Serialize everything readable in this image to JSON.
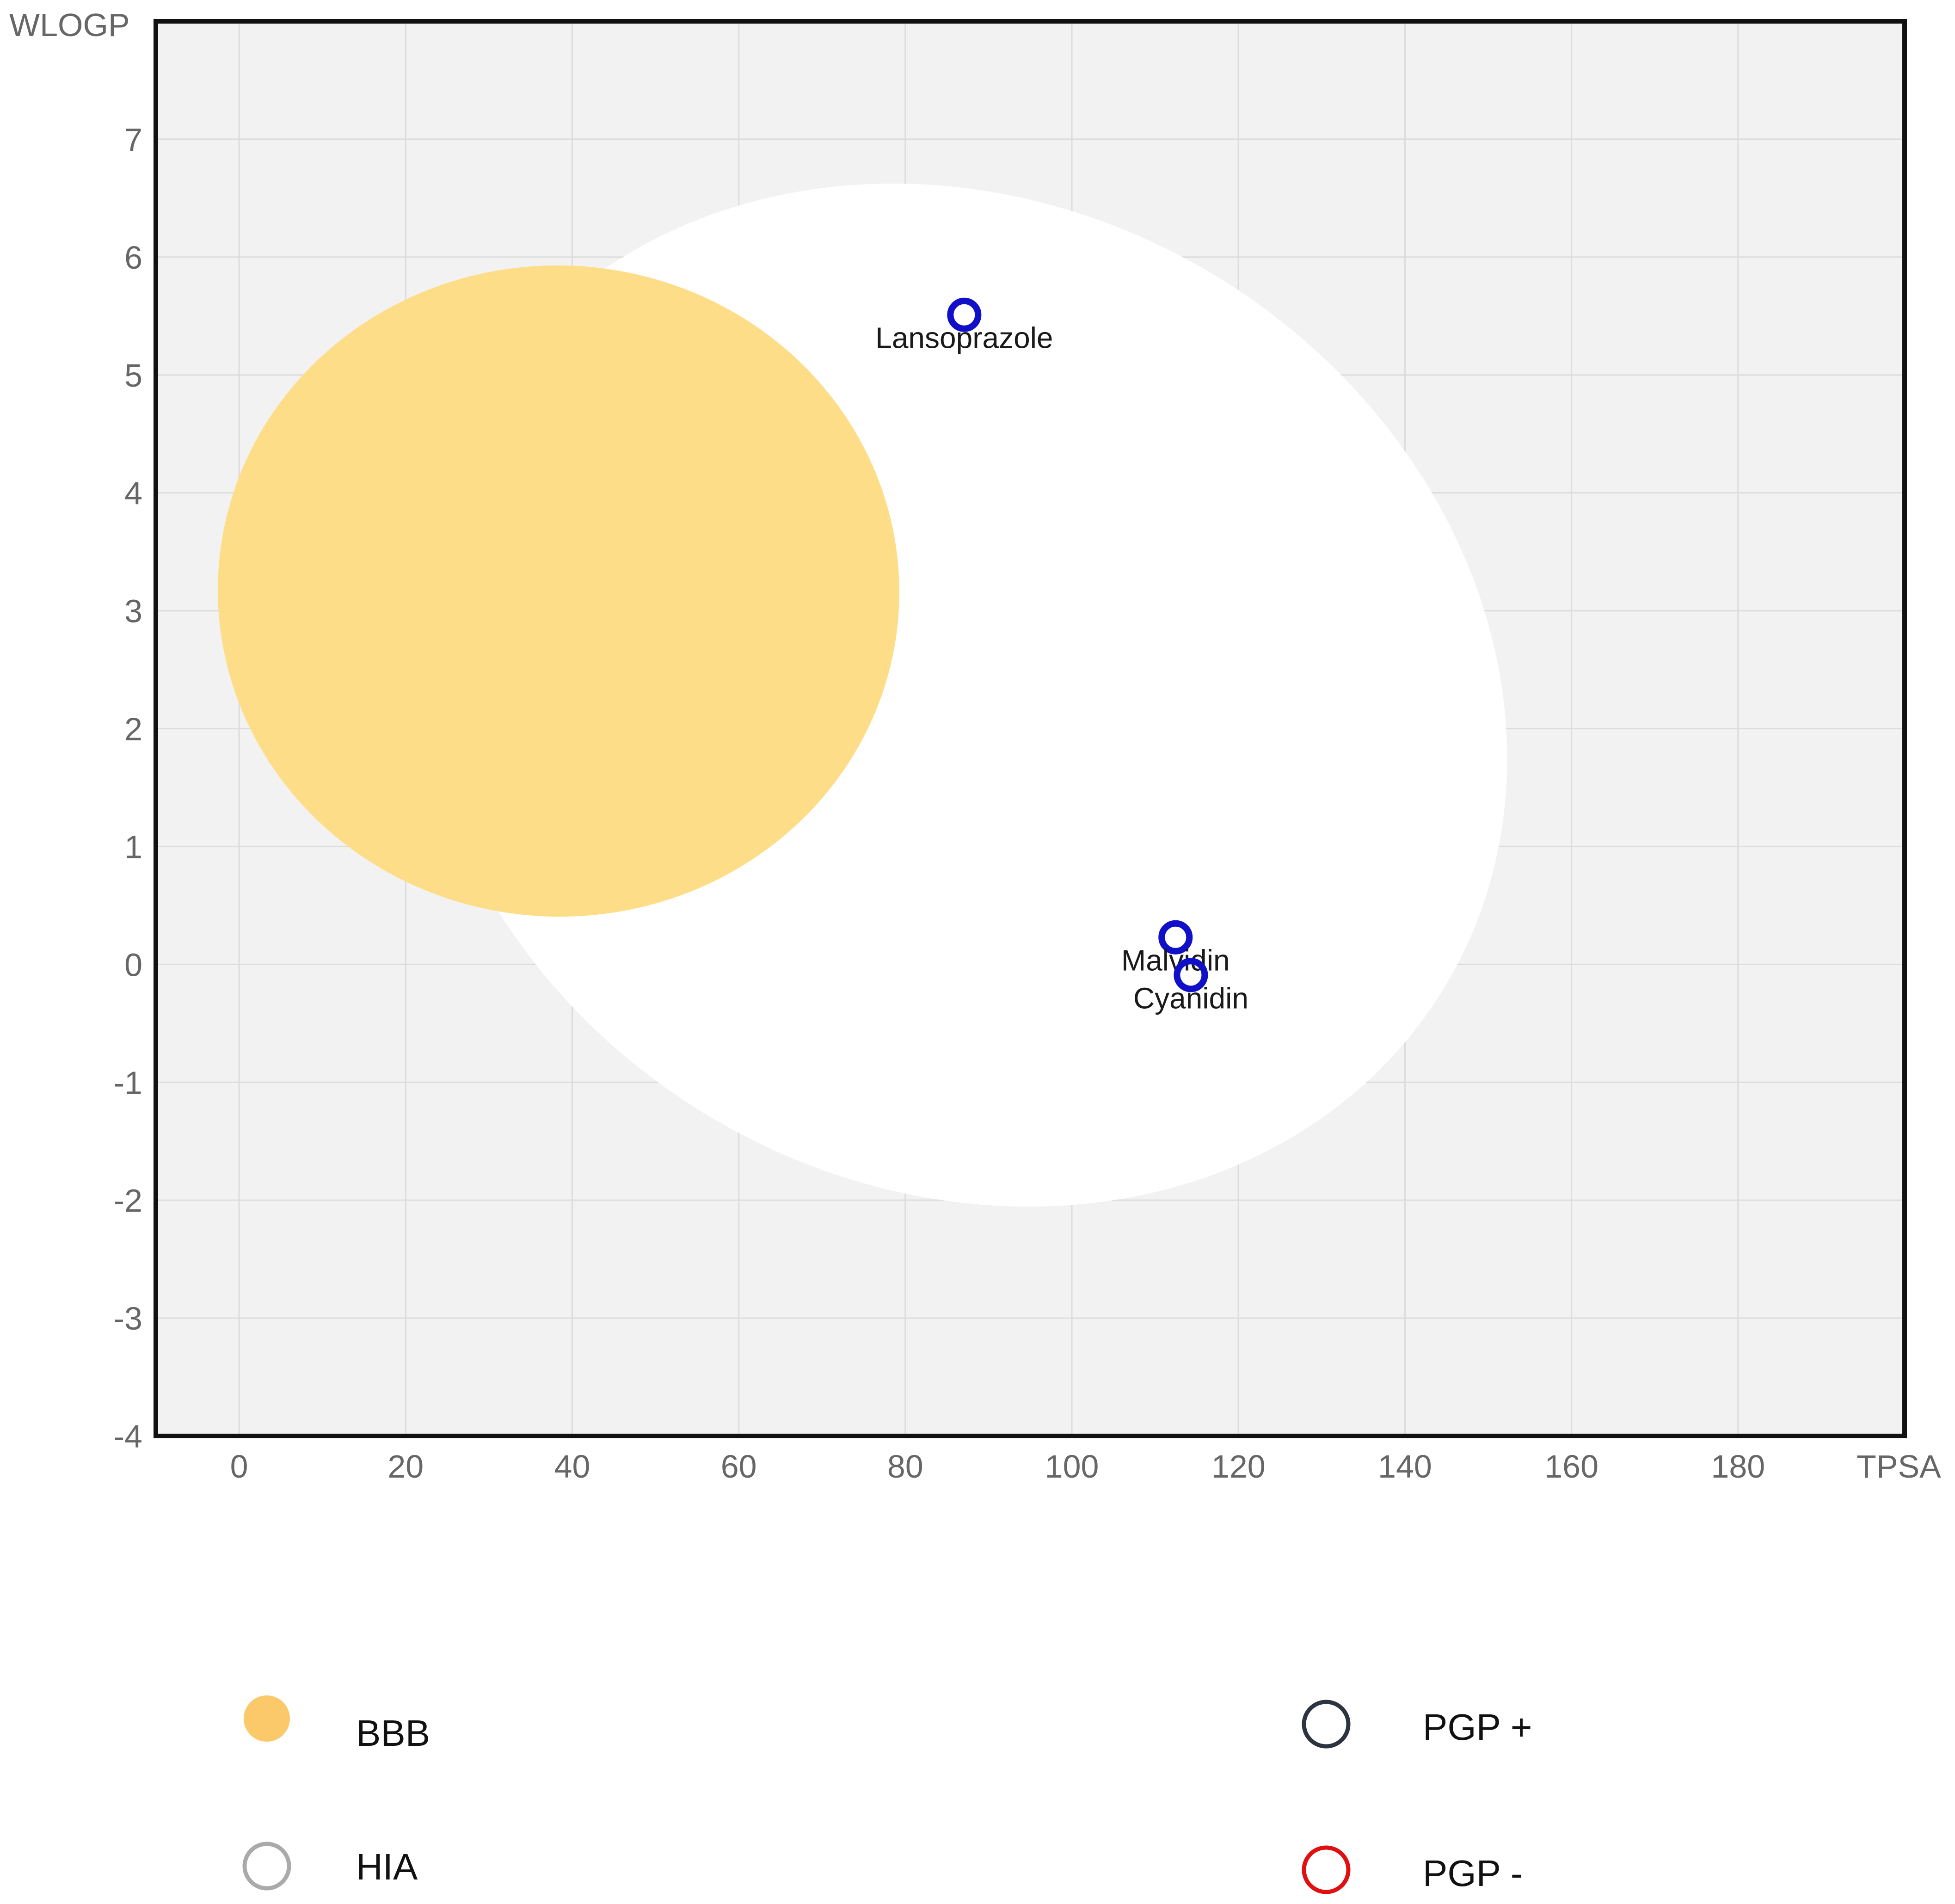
{
  "chart_data": {
    "type": "scatter",
    "title": "",
    "xlabel": "TPSA",
    "ylabel": "WLOGP",
    "xlim": [
      -10,
      200
    ],
    "ylim": [
      -4,
      8
    ],
    "x_ticks": [
      "0",
      "20",
      "40",
      "60",
      "80",
      "100",
      "120",
      "140",
      "160",
      "180"
    ],
    "y_ticks": [
      "7",
      "6",
      "5",
      "4",
      "3",
      "2",
      "1",
      "0",
      "-1",
      "-2",
      "-3",
      "-4"
    ],
    "grid": true,
    "regions": [
      {
        "name": "HIA",
        "shape": "ellipse",
        "color": "#ffffff"
      },
      {
        "name": "BBB",
        "shape": "ellipse",
        "color": "#fddd88"
      }
    ],
    "points": [
      {
        "label": "Lansoprazole",
        "x": 87.08,
        "y": 5.51,
        "class": "PGP -"
      },
      {
        "label": "Malvidin",
        "x": 112.45,
        "y": 0.23,
        "class": "PGP -"
      },
      {
        "label": "Cyanidin",
        "x": 114.29,
        "y": -0.09,
        "class": "PGP -"
      }
    ],
    "legend": {
      "placement": "bottom",
      "items": [
        {
          "label": "BBB",
          "marker": "filled-circle",
          "color": "#fbc96a"
        },
        {
          "label": "PGP +",
          "marker": "ring",
          "color": "#2b3440"
        },
        {
          "label": "HIA",
          "marker": "ring",
          "color": "#aaaaaa"
        },
        {
          "label": "PGP -",
          "marker": "ring",
          "color": "#e01010"
        }
      ]
    },
    "colors": {
      "plot_background": "#f2f2f2",
      "grid": "#dcdcdc",
      "frame": "#111111",
      "point": "#1010c8"
    }
  }
}
